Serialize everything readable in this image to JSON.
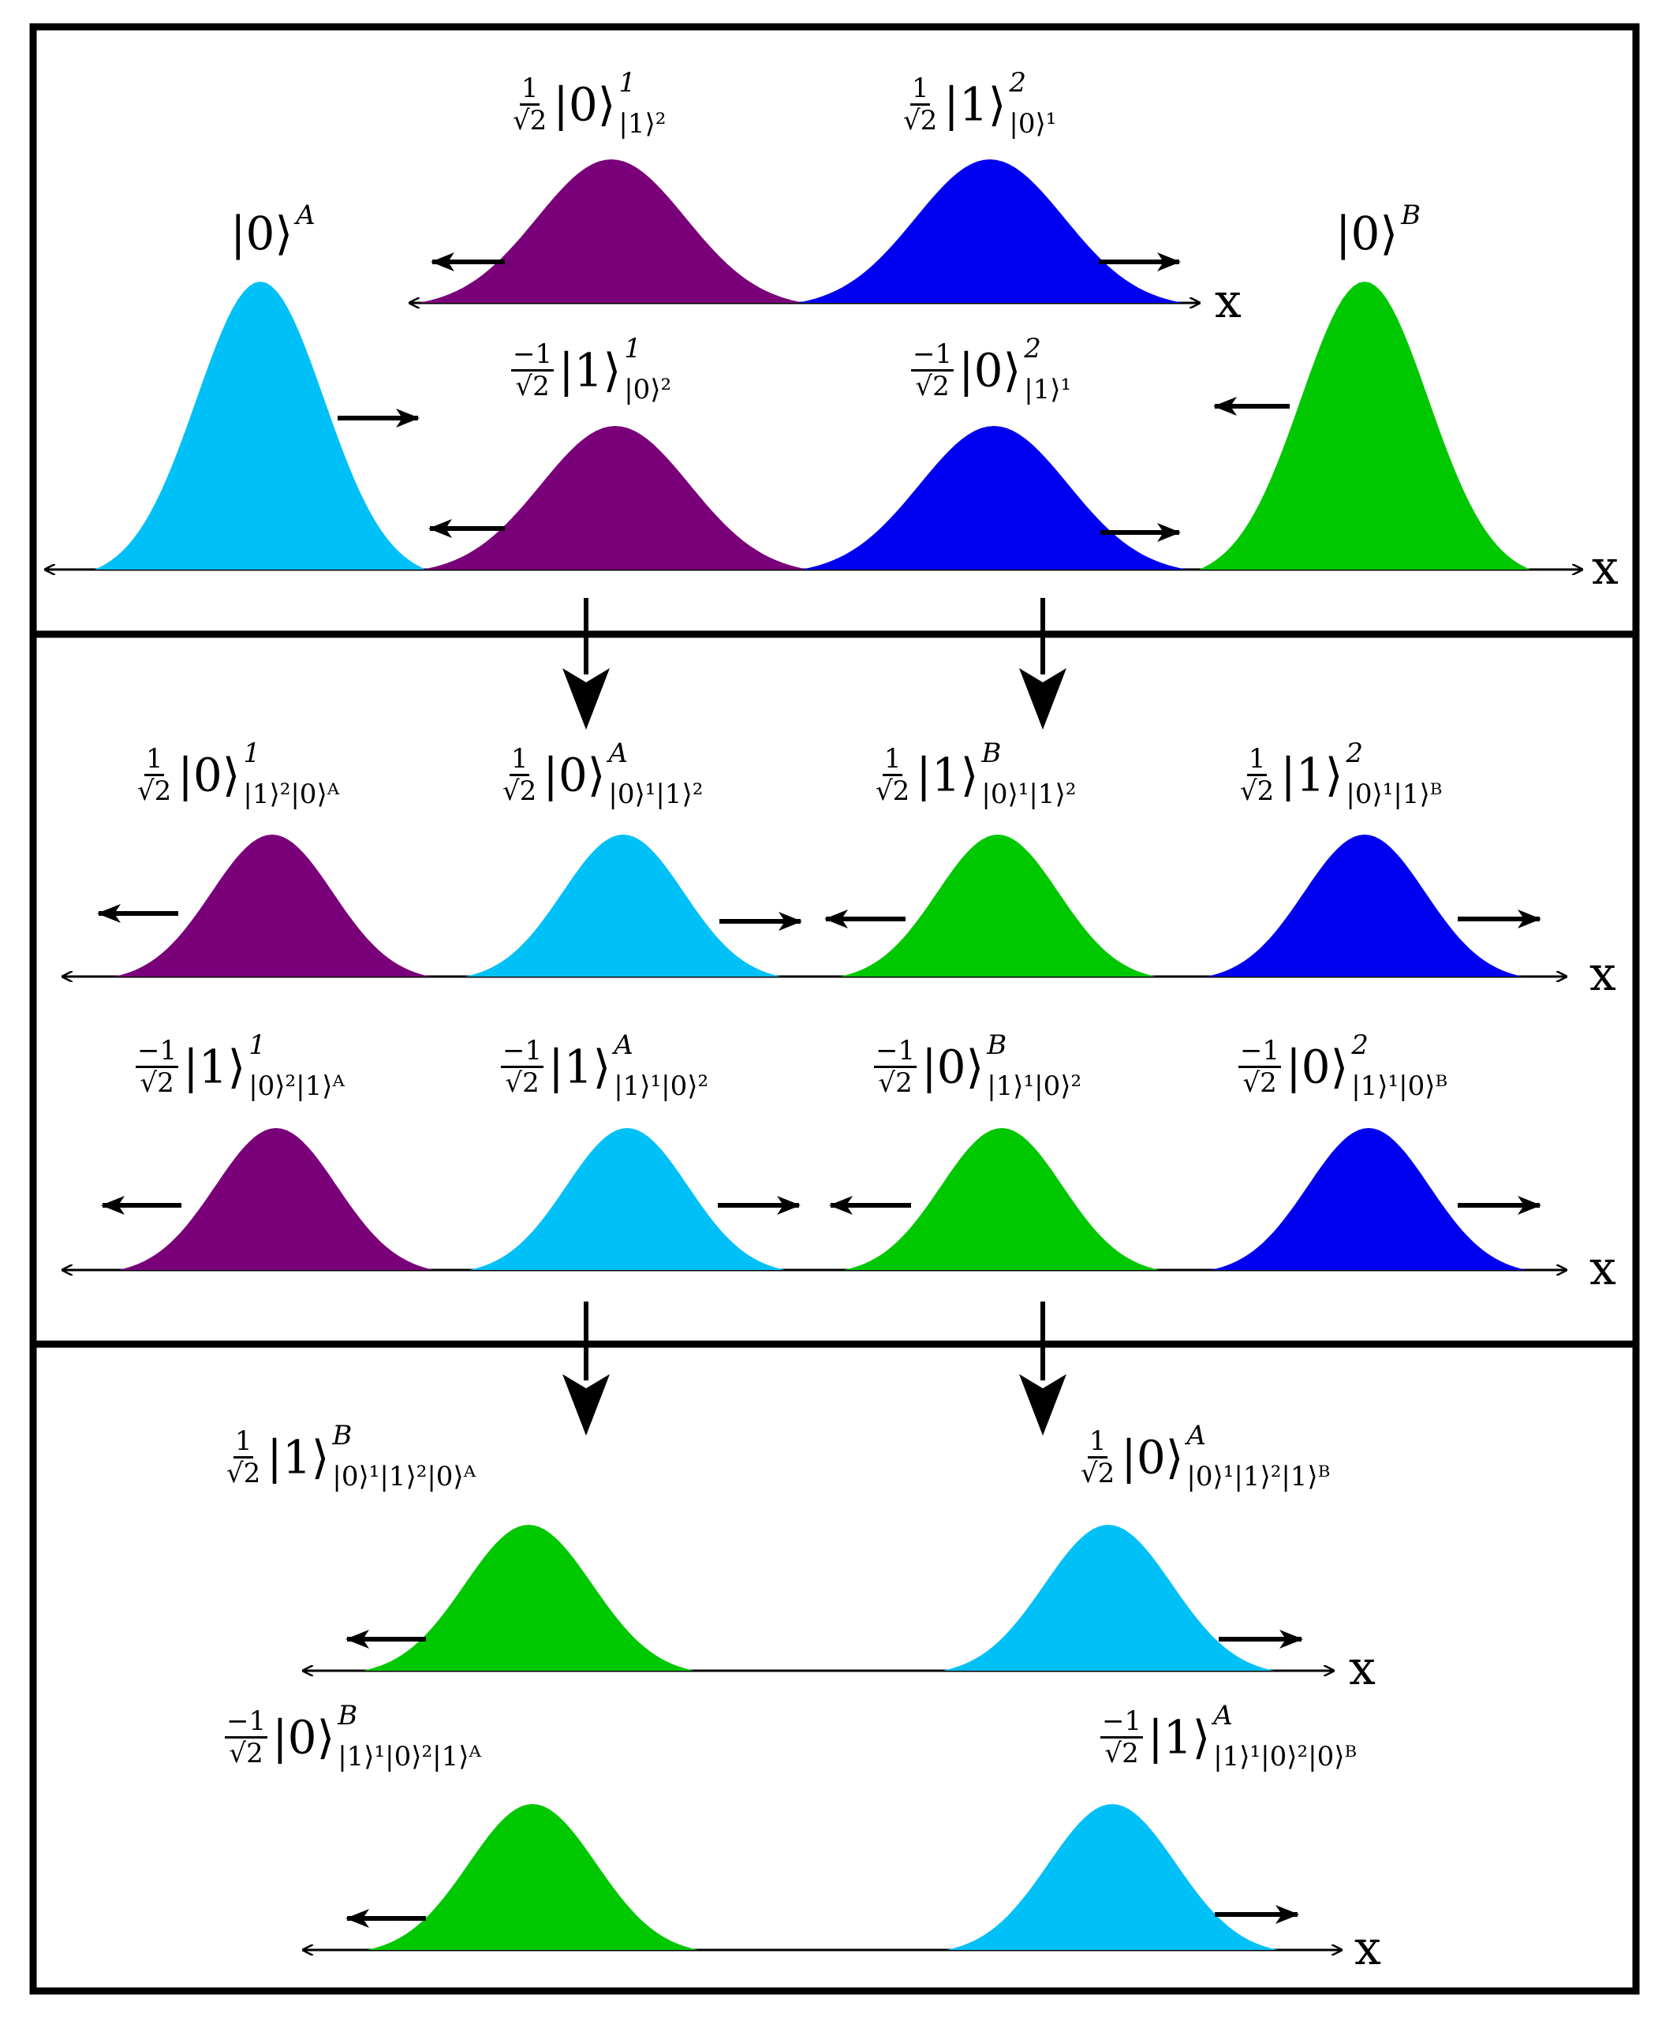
{
  "colors": {
    "light_blue": "#00c0f8",
    "purple": "#7a007a",
    "blue": "#0000f0",
    "green": "#00c800",
    "line": "#000000"
  },
  "axis_label": "x",
  "panel1": {
    "top_row": {
      "left": {
        "coef_num": "1",
        "coef_den": "√2",
        "ket": "|0⟩",
        "sup": "1",
        "sub": "|1⟩²"
      },
      "right": {
        "coef_num": "1",
        "coef_den": "√2",
        "ket": "|1⟩",
        "sup": "2",
        "sub": "|0⟩¹"
      }
    },
    "bottom_row": {
      "source_a": {
        "ket": "|0⟩",
        "sup": "A"
      },
      "left": {
        "coef_num": "−1",
        "coef_den": "√2",
        "ket": "|1⟩",
        "sup": "1",
        "sub": "|0⟩²"
      },
      "right": {
        "coef_num": "−1",
        "coef_den": "√2",
        "ket": "|0⟩",
        "sup": "2",
        "sub": "|1⟩¹"
      },
      "source_b": {
        "ket": "|0⟩",
        "sup": "B"
      }
    }
  },
  "panel2": {
    "top_row": [
      {
        "coef_num": "1",
        "coef_den": "√2",
        "ket": "|0⟩",
        "sup": "1",
        "sub": "|1⟩²|0⟩ᴬ"
      },
      {
        "coef_num": "1",
        "coef_den": "√2",
        "ket": "|0⟩",
        "sup": "A",
        "sub": "|0⟩¹|1⟩²"
      },
      {
        "coef_num": "1",
        "coef_den": "√2",
        "ket": "|1⟩",
        "sup": "B",
        "sub": "|0⟩¹|1⟩²"
      },
      {
        "coef_num": "1",
        "coef_den": "√2",
        "ket": "|1⟩",
        "sup": "2",
        "sub": "|0⟩¹|1⟩ᴮ"
      }
    ],
    "bottom_row": [
      {
        "coef_num": "−1",
        "coef_den": "√2",
        "ket": "|1⟩",
        "sup": "1",
        "sub": "|0⟩²|1⟩ᴬ"
      },
      {
        "coef_num": "−1",
        "coef_den": "√2",
        "ket": "|1⟩",
        "sup": "A",
        "sub": "|1⟩¹|0⟩²"
      },
      {
        "coef_num": "−1",
        "coef_den": "√2",
        "ket": "|0⟩",
        "sup": "B",
        "sub": "|1⟩¹|0⟩²"
      },
      {
        "coef_num": "−1",
        "coef_den": "√2",
        "ket": "|0⟩",
        "sup": "2",
        "sub": "|1⟩¹|0⟩ᴮ"
      }
    ]
  },
  "panel3": {
    "top_row": [
      {
        "coef_num": "1",
        "coef_den": "√2",
        "ket": "|1⟩",
        "sup": "B",
        "sub": "|0⟩¹|1⟩²|0⟩ᴬ"
      },
      {
        "coef_num": "1",
        "coef_den": "√2",
        "ket": "|0⟩",
        "sup": "A",
        "sub": "|0⟩¹|1⟩²|1⟩ᴮ"
      }
    ],
    "bottom_row": [
      {
        "coef_num": "−1",
        "coef_den": "√2",
        "ket": "|0⟩",
        "sup": "B",
        "sub": "|1⟩¹|0⟩²|1⟩ᴬ"
      },
      {
        "coef_num": "−1",
        "coef_den": "√2",
        "ket": "|1⟩",
        "sup": "A",
        "sub": "|1⟩¹|0⟩²|0⟩ᴮ"
      }
    ]
  }
}
